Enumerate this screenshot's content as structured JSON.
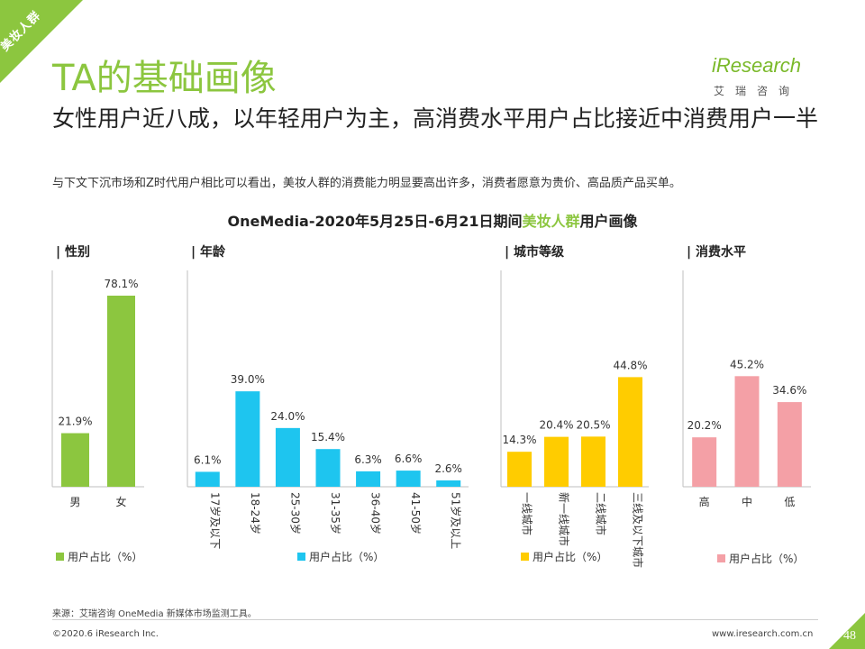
{
  "corner_tag": "美妆人群",
  "title": "TA的基础画像",
  "logo": {
    "main": "iResearch",
    "sub": "艾瑞咨询"
  },
  "subtitle": "女性用户近八成，以年轻用户为主，高消费水平用户占比接近中消费用户一半",
  "description": "与下文下沉市场和Z时代用户相比可以看出，美妆人群的消费能力明显要高出许多，消费者愿意为贵价、高品质产品买单。",
  "chart_title": {
    "before": "OneMedia-2020年5月25日-6月21日期间",
    "highlight": "美妆人群",
    "after": "用户画像"
  },
  "colors": {
    "accent": "#8cc63f",
    "gender": "#8cc63f",
    "age": "#1ec5ef",
    "city": "#ffcc00",
    "consumption": "#f4a0a6"
  },
  "chart_data": [
    {
      "type": "bar",
      "title": "| 性别",
      "categories": [
        "男",
        "女"
      ],
      "series": [
        {
          "name": "用户占比（%）",
          "values": [
            21.9,
            78.1
          ]
        }
      ],
      "value_labels": [
        "21.9%",
        "78.1%"
      ],
      "ylim": [
        0,
        80
      ]
    },
    {
      "type": "bar",
      "title": "| 年龄",
      "categories": [
        "17岁及以下",
        "18-24岁",
        "25-30岁",
        "31-35岁",
        "36-40岁",
        "41-50岁",
        "51岁及以上"
      ],
      "series": [
        {
          "name": "用户占比（%）",
          "values": [
            6.1,
            39.0,
            24.0,
            15.4,
            6.3,
            6.6,
            2.6
          ]
        }
      ],
      "value_labels": [
        "6.1%",
        "39.0%",
        "24.0%",
        "15.4%",
        "6.3%",
        "6.6%",
        "2.6%"
      ],
      "ylim": [
        0,
        80
      ]
    },
    {
      "type": "bar",
      "title": "| 城市等级",
      "categories": [
        "一线城市",
        "新一线城市",
        "二线城市",
        "三线及以下城市"
      ],
      "series": [
        {
          "name": "用户占比（%）",
          "values": [
            14.3,
            20.4,
            20.5,
            44.8
          ]
        }
      ],
      "value_labels": [
        "14.3%",
        "20.4%",
        "20.5%",
        "44.8%"
      ],
      "ylim": [
        0,
        80
      ]
    },
    {
      "type": "bar",
      "title": "| 消费水平",
      "categories": [
        "高",
        "中",
        "低"
      ],
      "series": [
        {
          "name": "用户占比（%）",
          "values": [
            20.2,
            45.2,
            34.6
          ]
        }
      ],
      "value_labels": [
        "20.2%",
        "45.2%",
        "34.6%"
      ],
      "ylim": [
        0,
        80
      ]
    }
  ],
  "footer": {
    "source": "来源：艾瑞咨询 OneMedia 新媒体市场监测工具。",
    "copyright": "©2020.6 iResearch Inc.",
    "website": "www.iresearch.com.cn",
    "page": "48"
  }
}
